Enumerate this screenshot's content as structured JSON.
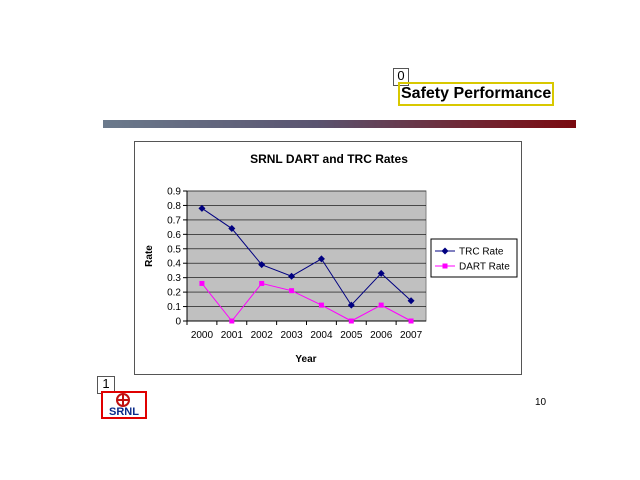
{
  "slide": {
    "title": "Safety Performance",
    "page_number": "10",
    "markers": [
      "0",
      "1"
    ],
    "logo_text": "SRNL"
  },
  "colors": {
    "plot_background": "#c0c0c0",
    "trc": "#000080",
    "dart": "#ff00ff",
    "title_box": "#d8c800",
    "logo_border": "#e00000"
  },
  "chart_data": {
    "type": "line",
    "title": "SRNL DART and TRC Rates",
    "xlabel": "Year",
    "ylabel": "Rate",
    "categories": [
      "2000",
      "2001",
      "2002",
      "2003",
      "2004",
      "2005",
      "2006",
      "2007"
    ],
    "ylim": [
      0,
      0.9
    ],
    "yticks": [
      "0",
      "0.1",
      "0.2",
      "0.3",
      "0.4",
      "0.5",
      "0.6",
      "0.7",
      "0.8",
      "0.9"
    ],
    "grid": true,
    "legend_position": "right",
    "series": [
      {
        "name": "TRC Rate",
        "marker": "diamond",
        "values": [
          0.78,
          0.64,
          0.39,
          0.31,
          0.43,
          0.11,
          0.33,
          0.14
        ]
      },
      {
        "name": "DART Rate",
        "marker": "square",
        "values": [
          0.26,
          0.0,
          0.26,
          0.21,
          0.11,
          0.0,
          0.11,
          0.0
        ]
      }
    ]
  }
}
